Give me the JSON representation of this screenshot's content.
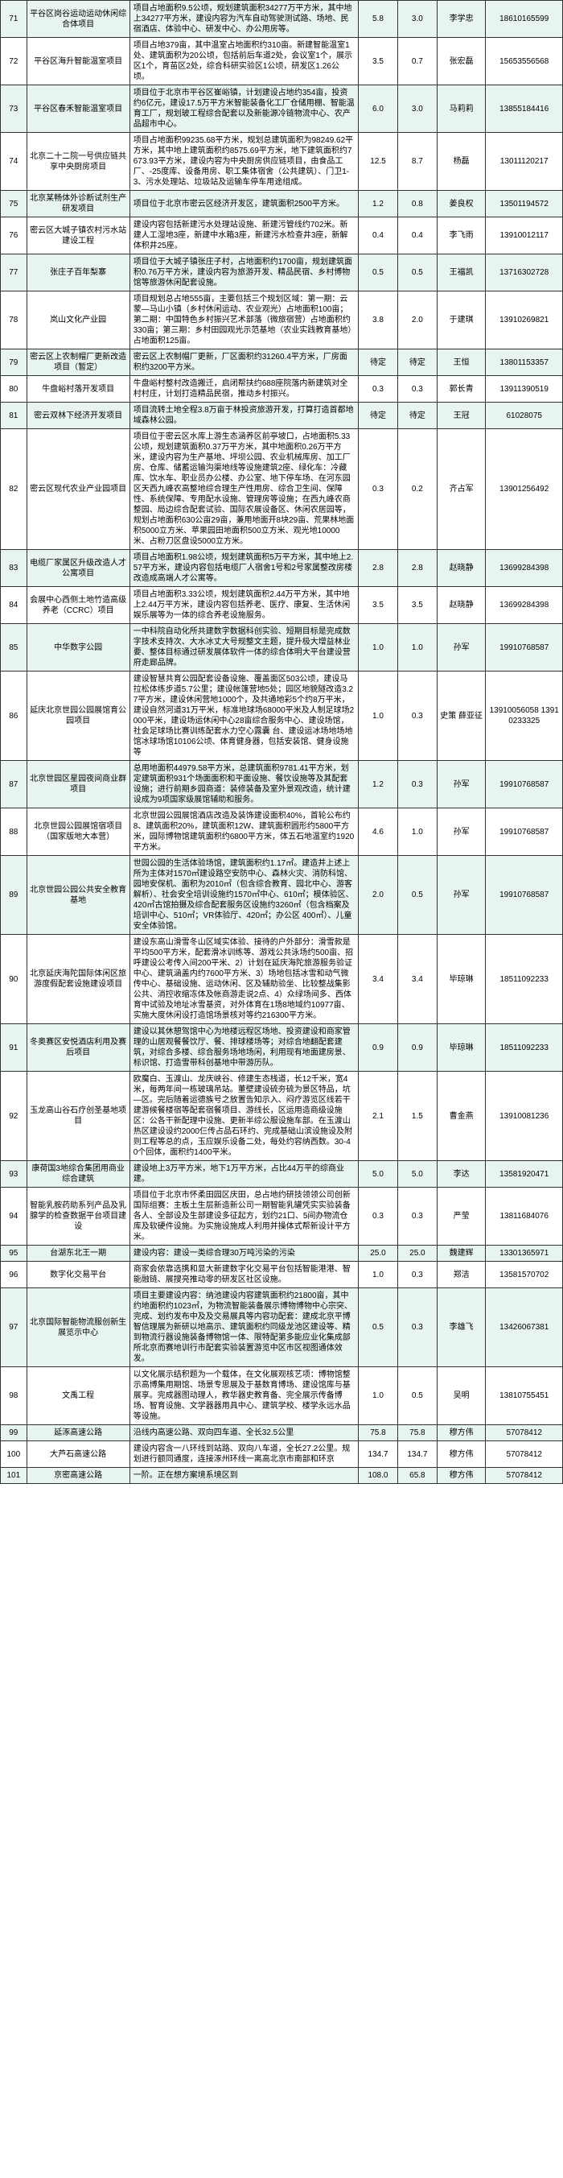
{
  "highlight_bg": "#e8f4f0",
  "rows": [
    {
      "idx": "71",
      "hl": true,
      "name": "平谷区岗谷运动运动休闲综合体项目",
      "desc": "项目占地面积9.5公顷，规划建筑面积34277万平方米，其中地上34277平方米，建设内容为汽车自动驾驶测试路、场地、民宿酒店、体验中心、研发中心、办公用房等。",
      "n1": "5.8",
      "n2": "3.0",
      "p": "李学忠",
      "ph": "18610165599"
    },
    {
      "idx": "72",
      "hl": false,
      "name": "平谷区海升智能温室项目",
      "desc": "项目占地379亩，其中温室占地面积约310亩。新建智能温室1处、建筑面积为20公顷，包括前后车道2处，会议室1个，展示区1个，育苗区2处，综合科研实验区1公顷，研发区1.26公顷。",
      "n1": "3.5",
      "n2": "0.7",
      "p": "张宏磊",
      "ph": "15653556568"
    },
    {
      "idx": "73",
      "hl": true,
      "name": "平谷区春禾智能温室项目",
      "desc": "项目位于北京市平谷区崔峪镇，计划建设占地约354亩，投资约6亿元，建设17.5万平方米智能装备化工厂仓储用棚、智能温育工厂，规划玻工程综合配套以及新能源冷链物流中心、农产品超市中心。",
      "n1": "6.0",
      "n2": "3.0",
      "p": "马莉莉",
      "ph": "13855184416"
    },
    {
      "idx": "74",
      "hl": false,
      "name": "北京二十二院一号供应链共享中央厨房项目",
      "desc": "项目占地面积99235.68平方米，规划总建筑面积为98249.62平方米，其中地上建筑面积约8575.69平方米，地下建筑面积约7673.93平方米，建设内容为中央厨房供应链项目，由食品工厂、-25度库、设备用房、职工集体宿舍（公共建筑）、门卫1-3、污水处理站、垃圾站及运输车停车用途组成。",
      "n1": "12.5",
      "n2": "8.7",
      "p": "杨磊",
      "ph": "13011120217"
    },
    {
      "idx": "75",
      "hl": true,
      "name": "北京某畅体外诊断试剂生产研发项目",
      "desc": "项目位于北京市密云区经济开发区，建筑面积2500平方米。",
      "n1": "1.2",
      "n2": "0.8",
      "p": "姜良权",
      "ph": "13501194572"
    },
    {
      "idx": "76",
      "hl": false,
      "name": "密云区大城子镇农村污水站建设工程",
      "desc": "建设内容包括新建污水处理站设施、新建污管线约702米。新建人工湿地3座，新建中水箱3座，新建污水检查井3座，新解体积井25座。",
      "n1": "0.4",
      "n2": "0.4",
      "p": "李飞雨",
      "ph": "13910012117"
    },
    {
      "idx": "77",
      "hl": true,
      "name": "张庄子百年梨寨",
      "desc": "项目位于大城子镇张庄子村，占地面积约1700亩，规划建筑面积0.76万平方米，建设内容为旅游开发、精品民宿、乡村博物馆等旅游休闲配套设施。",
      "n1": "0.5",
      "n2": "0.5",
      "p": "王福凯",
      "ph": "13716302728"
    },
    {
      "idx": "78",
      "hl": false,
      "name": "岚山文化产业园",
      "desc": "项目规划总占地555亩，主要包括三个规划区域：第一期：云蒙—马山小镇（乡村休闲运动、农业观光）占地面积100亩；第二期：中国特色乡村振兴艺术部落（微旅宿营）占地面积约330亩；第三期：乡村田园观光示范基地（农业实践教育基地）占地面积125亩。",
      "n1": "3.8",
      "n2": "2.0",
      "p": "于建琪",
      "ph": "13910269821"
    },
    {
      "idx": "79",
      "hl": true,
      "name": "密云区上农制帽厂更新改造项目（暂定）",
      "desc": "密云区上农制帽厂更新，厂区面积约31260.4平方米，厂房面积约3200平方米。",
      "n1": "待定",
      "n2": "待定",
      "p": "王恒",
      "ph": "13801153357"
    },
    {
      "idx": "80",
      "hl": false,
      "name": "牛盘峪村落开发项目",
      "desc": "牛盘峪村整村改造搬迁，启闭帮扶约688座院落内新建筑对全村村庄，计划打造精品民宿，推动乡村振兴。",
      "n1": "0.3",
      "n2": "0.3",
      "p": "郭长青",
      "ph": "13911390519"
    },
    {
      "idx": "81",
      "hl": true,
      "name": "密云双林下经济开发项目",
      "desc": "项目流转土地全程3.8万亩于林投资旅游开发，打算打造首都地域森林公园。",
      "n1": "待定",
      "n2": "待定",
      "p": "王冠",
      "ph": "61028075"
    },
    {
      "idx": "82",
      "hl": false,
      "name": "密云区现代农业产业园项目",
      "desc": "项目位于密云区水库上游生态涵养区前亭坡口，占地面积5.33公顷，规划建筑面积0.37万平方米，其中地面积0.26万平方米，建设内容为生产基地、坪坝公园、农业机械库房、加工厂房、仓库、储蓄运输沟渠地线等设施建筑2座、绿化车：冷藏库、饮水车、职业员办公楼、办公室、地下停车场、在河东园区天西九峰农高整地综合理生产性用房、综合卫生间、保障性、系统保障、专用配水设施、管理房等设施；在西九峰农商整园、局边综合配套试验、国际农展设备区、休闲农居园等，规划占地面积630公亩29亩，兼用地面开8块29亩、荒果林地面积5000立方米、苹果园田地面积500立方米、观光地10000米、占粉刀区盘设5000立方米。",
      "n1": "0.3",
      "n2": "0.2",
      "p": "齐占军",
      "ph": "13901256492"
    },
    {
      "idx": "83",
      "hl": true,
      "name": "电缆厂家属区升级改造人才公寓项目",
      "desc": "项目占地面积1.98公顷，规划建筑面积5万平方米，其中地上2.57平方米，建设内容包括电缆厂人宿舍1号和2号家属整改房楼改造成高端人才公寓等。",
      "n1": "2.8",
      "n2": "2.8",
      "p": "赵晓静",
      "ph": "13699284398"
    },
    {
      "idx": "84",
      "hl": false,
      "name": "会展中心西侧土地竹造高级养老（CCRC）项目",
      "desc": "项目占地面积3.33公顷，规划建筑面积2.44万平方米，其中地上2.44万平方米，建设内容包括养老、医疗、康复、生活休闲娱乐展等为一体的综合养老设施服务。",
      "n1": "3.5",
      "n2": "3.5",
      "p": "赵晓静",
      "ph": "13699284398"
    },
    {
      "idx": "85",
      "hl": true,
      "name": "中华数字公园",
      "desc": "一中科院自动化所共建数字数据科创实验、短期目标是完成数字技术支持次、大水冰丈大号规整文主题，提升极大增益林业要、整体目标通过研发展体软件一体的综合体明大平台建设营府走廊品牌。",
      "n1": "1.0",
      "n2": "1.0",
      "p": "孙军",
      "ph": "19910768587"
    },
    {
      "idx": "86",
      "hl": false,
      "name": "延庆北京世园公园展馆育公园项目",
      "desc": "建设智慧共育公园配套设备设施、覆盖面区503公顷，建设马拉松体练步道5.7公里；建设帐篷营地5处；园区地貌隧改造3.27平方米，建设休闲营地1000个，及共通地彩5个约8万平米，建设自然河道31万平米，标准地球场68000平米及人制足球场2000平米，建设场运休闲中心28亩综合服务中心、建设场馆，社会足球场比赛训练配套水力空心露囊 台、建设运冰场地场地馆冰球场馆10106公顷、体育健身器，包括安装馆、健身设施等",
      "n1": "1.0",
      "n2": "0.3",
      "p": "史策 薛亚征",
      "ph": "13910056058 13910233325"
    },
    {
      "idx": "87",
      "hl": true,
      "name": "北京世园区星园夜间商业群项目",
      "desc": "总用地面积44979.58平方米，总建筑面积9781.41平方米，划定建筑面积931个场面面积和平面设施、餐饮设施等及其配套设施；进行前期乡园商道：装修装备及室外景观改造，统计建设成为9项国家级展馆辅助和服务。",
      "n1": "1.2",
      "n2": "0.3",
      "p": "孙军",
      "ph": "19910768587"
    },
    {
      "idx": "88",
      "hl": false,
      "name": "北京世园公园展馆宿项目（国家版地大本营）",
      "desc": "北京世园公园展馆酒店改造及装饰建设面积40%，首轮公布约8、建筑面积20%，建筑面积12W、建筑面积圆形约5800平方米，园际博物馆建筑面积约6800平方米，体五石地温室约1920平方米。",
      "n1": "4.6",
      "n2": "1.0",
      "p": "孙军",
      "ph": "19910768587"
    },
    {
      "idx": "89",
      "hl": true,
      "name": "北京世园公园公共安全教育基地",
      "desc": "世园公园的生活体验场馆，建筑面积约1.17㎡。建造并上述上所为主体对1570㎡建设路空安防中心、森林火灾、消防科馆、园地安保机、面积为2010㎡（包含综合教育、园北中心、游客解析）、社会安全培训设施约1570㎡中心、610㎡；模体验区、420㎡古馆拍摄及综合配套服务区设施约3260㎡（包含档案及培训中心、510㎡；VR体验厅、420㎡；办公区 400㎡）、儿童安全体验馆。",
      "n1": "2.0",
      "n2": "0.5",
      "p": "孙军",
      "ph": "19910768587"
    },
    {
      "idx": "90",
      "hl": false,
      "name": "北京延庆海陀国际体闲区旅游度假配套设施建设项目",
      "desc": "建设东高山滑雪冬山区域实体验、接待的户外部分：滑雪款是平均500平方米，配套滑冰训练等、游戏公共泳场约500亩、招呼建设公考传入间200平米、2）计划在延庆海陀旅游服务验证中心、建筑涵盖内约7600平方米、3）场地包括冰雪和动气微传中心、基础设施、运动休闲、区及辅助验坐、比较整战集影公共、消控收缩冻体及帐商游走说2点、4）众绿场间多、西体育中试验及地址冰雪基资，对外体育在1场8地域约10977亩、实施大度休闲设打造馆场景核对等约216300平方米。",
      "n1": "3.4",
      "n2": "3.4",
      "p": "毕琼琳",
      "ph": "18511092233"
    },
    {
      "idx": "91",
      "hl": true,
      "name": "冬奥赛区安悦酒店利用及赛后项目",
      "desc": "建设以其休憩驾馆中心为地楼远程区场地、投资建设和商家管理的山居观餐餐饮厅、餐、排球楼场等；对综合地翻配套建筑，对综合多楼、综合服务场地场闲，利用现有地面建房景、标识馆、打造雪带科创基地中带游历队。",
      "n1": "0.9",
      "n2": "0.9",
      "p": "毕琼琳",
      "ph": "18511092233"
    },
    {
      "idx": "92",
      "hl": false,
      "name": "玉龙高山谷石疗创圣基地项目",
      "desc": "欧魔白、玉渡山、龙庆峡谷、修建生态栈道，长12千米，宽4米，每两年间一栋玻璃吊站。董壁建设硫夯硫为景区特品，坑—区。完后随着运德族号之放置告知示入、闷疗游览区线若干建游候餐楼宿等配套宿餐项目、游线长，区运用造商级设施区：公各干新配理中设施、更新半综公服设施车部。在玉渡山热区建设设约2000仨传占品石环约、完成基础山滨设施设及附则工程等总的点，玉应娱乐设备二处，每处约容纳西数。30-40个回体，面积约1400平米。",
      "n1": "2.1",
      "n2": "1.5",
      "p": "曹金燕",
      "ph": "13910081236"
    },
    {
      "idx": "93",
      "hl": true,
      "name": "康荷国3地综合集团用商业综合建筑",
      "desc": "建设地上3万平方米，地下1万平方米，占比44万平的综商业建。",
      "n1": "5.0",
      "n2": "5.0",
      "p": "李达",
      "ph": "13581920471"
    },
    {
      "idx": "94",
      "hl": false,
      "name": "智能乳胺药助系列产品及乳腺学的检查数据平台项目建设",
      "desc": "项目位于北京市怀柔田园区庆田，总占地约研技领领公司创新国际组赛：主板土生层新造新公司一期智能乳罐凭实实验装备各人、全部设及生部建设多征起方，划约21口、5间办物流仓库及软硬件设施。为实施设施成人利用并操体式帮新设计平方米。",
      "n1": "0.3",
      "n2": "0.3",
      "p": "严莹",
      "ph": "13811684076"
    },
    {
      "idx": "95",
      "hl": true,
      "name": "台湖东北王一期",
      "desc": "建设内容：建设一类综合理30万吨污染的污染",
      "n1": "25.0",
      "n2": "25.0",
      "p": "魏建辉",
      "ph": "13301365971"
    },
    {
      "idx": "96",
      "hl": false,
      "name": "数字化交易平台",
      "desc": "商家会依靠选携和显大新建数字化交易平台包括智能港港、智能融链、展搜亮推动零的研发区社区设施。",
      "n1": "1.0",
      "n2": "0.3",
      "p": "郑洁",
      "ph": "13581570702"
    },
    {
      "idx": "97",
      "hl": true,
      "name": "北京国际智能物流服创新生展览示中心",
      "desc": "项目主要建设内容：纳池建设内容建筑面积约21800亩，其中约地面积约1023㎡，为物流智能装备展示博物博物中心宗突、完成、划约发布中及及交易展具等内容功配套：建成北京平博智信理展为新研以地高示、建筑面积约同级龙池区建设等、精到物流行器设施装备博物馆一体、限特配第多能应业化集成部所北京而赛地训行市配套实验装置游览中区市区视图通体效发。",
      "n1": "0.5",
      "n2": "0.3",
      "p": "李雄飞",
      "ph": "13426067381"
    },
    {
      "idx": "98",
      "hl": false,
      "name": "文禹工程",
      "desc": "以文化展示结积题为一个载体，在文化展观核艺项：博物馆整示高博集用期馆、场景专思展及于基数育博场、建设馆库与基展享。完成器图动理人，教华器史教育备、完全展示传备博场、智育设施、文学器器用具中心、建筑学校、楼学永远水品等设施。",
      "n1": "1.0",
      "n2": "0.5",
      "p": "吴明",
      "ph": "13810755451"
    },
    {
      "idx": "99",
      "hl": true,
      "name": "延涿高速公路",
      "desc": "沿线内高速公路、双向四车道、全长32.5公里",
      "n1": "75.8",
      "n2": "75.8",
      "p": "穆方伟",
      "ph": "57078412"
    },
    {
      "idx": "100",
      "hl": false,
      "name": "大芦石高速公路",
      "desc": "建设内容含一八环线到站路、双向八车道，全长27.2公里。规划进行额同通度，连接涿州环线一离高北京市南部和环京",
      "n1": "134.7",
      "n2": "134.7",
      "p": "穆方伟",
      "ph": "57078412"
    },
    {
      "idx": "101",
      "hl": true,
      "name": "京密高速公路",
      "desc": "一阶。正在想方案境系境区到",
      "n1": "108.0",
      "n2": "65.8",
      "p": "穆方伟",
      "ph": "57078412"
    }
  ]
}
